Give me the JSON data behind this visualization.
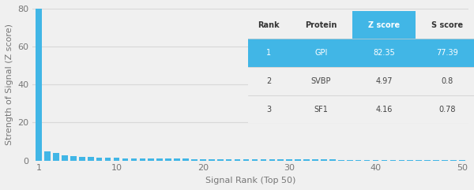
{
  "xlabel": "Signal Rank (Top 50)",
  "ylabel": "Strength of Signal (Z score)",
  "ylim": [
    0,
    80
  ],
  "yticks": [
    0,
    20,
    40,
    60,
    80
  ],
  "xticks": [
    1,
    10,
    20,
    30,
    40,
    50
  ],
  "bar_color": "#41b6e6",
  "background_color": "#f0f0f0",
  "z_scores": [
    82.35,
    4.97,
    4.16,
    2.8,
    2.5,
    2.1,
    1.9,
    1.7,
    1.5,
    1.4,
    1.3,
    1.2,
    1.15,
    1.1,
    1.05,
    1.0,
    0.95,
    0.9,
    0.88,
    0.85,
    0.82,
    0.8,
    0.78,
    0.75,
    0.72,
    0.7,
    0.68,
    0.65,
    0.63,
    0.6,
    0.58,
    0.55,
    0.53,
    0.51,
    0.49,
    0.47,
    0.45,
    0.43,
    0.41,
    0.39,
    0.37,
    0.35,
    0.33,
    0.31,
    0.29,
    0.27,
    0.25,
    0.23,
    0.21,
    0.19
  ],
  "table_data": [
    [
      "1",
      "GPI",
      "82.35",
      "77.39"
    ],
    [
      "2",
      "SVBP",
      "4.97",
      "0.8"
    ],
    [
      "3",
      "SF1",
      "4.16",
      "0.78"
    ]
  ],
  "table_headers": [
    "Rank",
    "Protein",
    "Z score",
    "S score"
  ],
  "highlight_color": "#41b6e6",
  "highlight_text_color": "#ffffff",
  "table_text_color": "#444444",
  "header_text_color": "#333333",
  "grid_color": "#d8d8d8",
  "tick_color": "#777777"
}
